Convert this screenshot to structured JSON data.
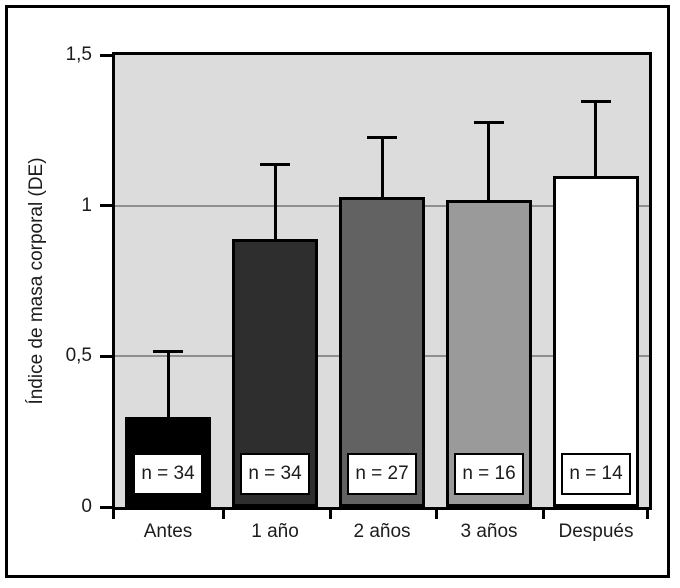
{
  "figure": {
    "y_axis_title": "Índice de masa corporal (DE)"
  },
  "chart_data": {
    "type": "bar",
    "title": "",
    "xlabel": "",
    "ylabel": "Índice de masa corporal (DE)",
    "categories": [
      "Antes",
      "1 año",
      "2 años",
      "3 años",
      "Después"
    ],
    "values": [
      0.3,
      0.89,
      1.03,
      1.02,
      1.1
    ],
    "error_plus": [
      0.22,
      0.25,
      0.2,
      0.26,
      0.25
    ],
    "error_upper_ends": [
      0.52,
      1.14,
      1.23,
      1.28,
      1.35
    ],
    "bar_labels": [
      "n = 34",
      "n = 34",
      "n = 27",
      "n = 16",
      "n = 14"
    ],
    "bar_colors": [
      "#000000",
      "#2e2e2e",
      "#626262",
      "#9a9a9a",
      "#ffffff"
    ],
    "ylim": [
      0,
      1.5
    ],
    "yticks": [
      {
        "value": 0,
        "label": "0"
      },
      {
        "value": 0.5,
        "label": "0,5"
      },
      {
        "value": 1,
        "label": "1"
      },
      {
        "value": 1.5,
        "label": "1,5"
      }
    ],
    "gridlines_at": [
      0.5,
      1
    ],
    "legend": "none",
    "plot_background": "#dcdcdc",
    "gridline_color": "#8f8f8f",
    "axis_color": "#000000"
  }
}
